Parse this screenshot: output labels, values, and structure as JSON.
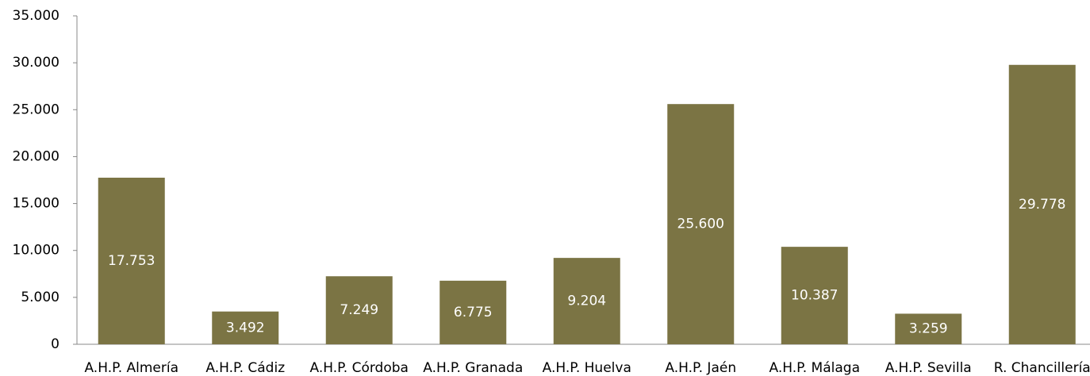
{
  "chart_data": {
    "type": "bar",
    "categories": [
      "A.H.P. Almería",
      "A.H.P. Cádiz",
      "A.H.P. Córdoba",
      "A.H.P. Granada",
      "A.H.P. Huelva",
      "A.H.P. Jaén",
      "A.H.P. Málaga",
      "A.H.P. Sevilla",
      "R. Chancillería"
    ],
    "values": [
      17753,
      3492,
      7249,
      6775,
      9204,
      25600,
      10387,
      3259,
      29778
    ],
    "value_labels": [
      "17.753",
      "3.492",
      "7.249",
      "6.775",
      "9.204",
      "25.600",
      "10.387",
      "3.259",
      "29.778"
    ],
    "color": "#7b7444",
    "ylim": [
      0,
      35000
    ],
    "yticks": [
      0,
      {
        "value": 5000,
        "label": "5.000"
      },
      {
        "value": 10000,
        "label": "10.000"
      },
      {
        "value": 15000,
        "label": "15.000"
      },
      {
        "value": 20000,
        "label": "20.000"
      },
      {
        "value": 25000,
        "label": "25.000"
      },
      {
        "value": 30000,
        "label": "30.000"
      },
      {
        "value": 35000,
        "label": "35.000"
      }
    ],
    "grid": false
  }
}
